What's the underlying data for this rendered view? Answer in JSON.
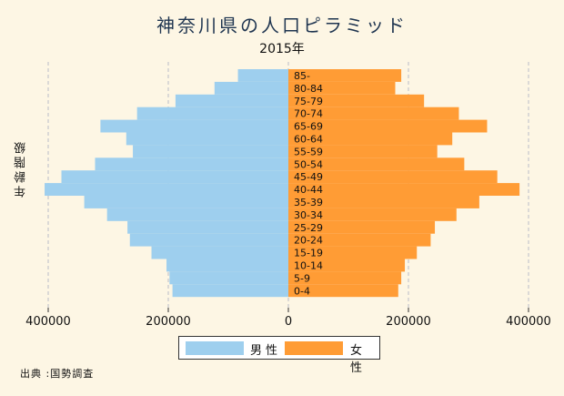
{
  "chart_data": {
    "type": "bar",
    "orientation": "horizontal-population-pyramid",
    "title": "神奈川県の人口ピラミッド",
    "subtitle": "2015年",
    "ylabel": "年齢階級",
    "xlabel": "",
    "xlim": [
      -400000,
      400000
    ],
    "xticks": [
      -400000,
      -200000,
      0,
      200000,
      400000
    ],
    "xtick_labels": [
      "400000",
      "200000",
      "0",
      "200000",
      "400000"
    ],
    "grid": "vertical-dashed",
    "legend_position": "bottom",
    "categories": [
      "0-4",
      "5-9",
      "10-14",
      "15-19",
      "20-24",
      "25-29",
      "30-34",
      "35-39",
      "40-44",
      "45-49",
      "50-54",
      "55-59",
      "60-64",
      "65-69",
      "70-74",
      "75-79",
      "80-84",
      "85-"
    ],
    "series": [
      {
        "name": "男性",
        "color": "#9ecfee",
        "values": [
          193000,
          198000,
          203000,
          228000,
          264000,
          268000,
          302000,
          340000,
          406000,
          378000,
          322000,
          259000,
          270000,
          313000,
          252000,
          188000,
          123000,
          84000
        ]
      },
      {
        "name": "女性",
        "color": "#ff9c35",
        "values": [
          183000,
          188000,
          194000,
          214000,
          237000,
          244000,
          280000,
          318000,
          385000,
          348000,
          293000,
          248000,
          273000,
          331000,
          284000,
          226000,
          178000,
          188000
        ]
      }
    ]
  },
  "source": "出典 :国勢調査"
}
